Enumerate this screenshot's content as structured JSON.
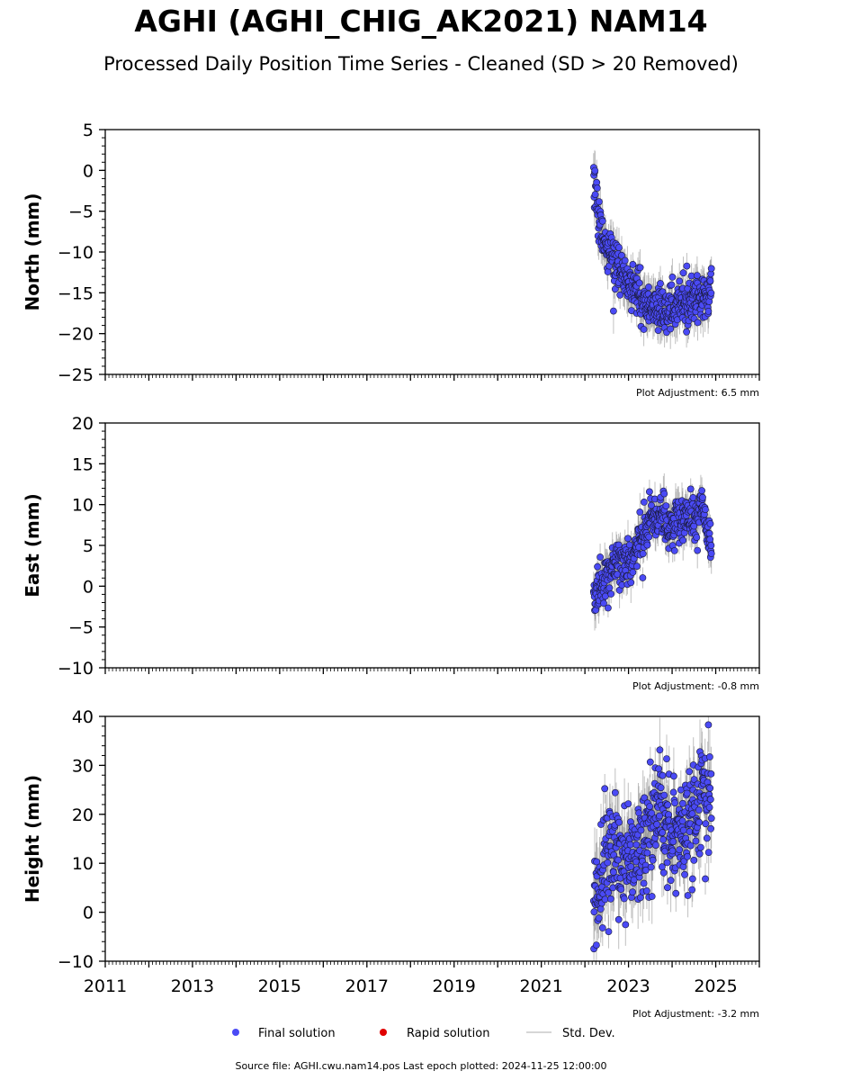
{
  "title": "AGHI (AGHI_CHIG_AK2021) NAM14",
  "subtitle": "Processed Daily Position Time Series - Cleaned (SD > 20 Removed)",
  "footer": "Source file: AGHI.cwu.nam14.pos  Last epoch plotted: 2024-11-25 12:00:00",
  "legend": [
    {
      "label": "Final solution",
      "color": "#4a4af5",
      "icon": "circle-marker"
    },
    {
      "label": "Rapid solution",
      "color": "#e00000",
      "icon": "circle-marker"
    },
    {
      "label": "Std. Dev.",
      "color": "#c8c8c8",
      "icon": "line-marker"
    }
  ],
  "colors": {
    "final": "#4a4af5",
    "rapid": "#e00000",
    "stddev": "#8c8c8c"
  },
  "chart_data": [
    {
      "type": "scatter",
      "ylabel": "North (mm)",
      "ylim": [
        -25,
        5
      ],
      "yticks": [
        5,
        0,
        -5,
        -10,
        -15,
        -20,
        -25
      ],
      "xlim": [
        2011,
        2026
      ],
      "adjustment": "Plot Adjustment: 6.5 mm",
      "series": [
        {
          "name": "Final solution",
          "x": [
            2022.2,
            2022.25,
            2022.3,
            2022.35,
            2022.4,
            2022.5,
            2022.6,
            2022.7,
            2022.8,
            2022.9,
            2023.0,
            2023.1,
            2023.2,
            2023.3,
            2023.4,
            2023.5,
            2023.6,
            2023.7,
            2023.8,
            2023.9,
            2024.0,
            2024.1,
            2024.2,
            2024.3,
            2024.4,
            2024.5,
            2024.6,
            2024.7,
            2024.8,
            2024.9
          ],
          "y": [
            0.0,
            -3.0,
            -5.5,
            -7.0,
            -8.0,
            -9.5,
            -10.5,
            -11.5,
            -12.5,
            -13.0,
            -14.0,
            -14.5,
            -15.0,
            -15.5,
            -16.0,
            -16.5,
            -17.0,
            -17.0,
            -17.5,
            -17.0,
            -16.5,
            -16.5,
            -16.0,
            -16.0,
            -16.0,
            -16.0,
            -16.0,
            -15.5,
            -15.5,
            -14.0
          ],
          "sd_mm": 2.0
        }
      ]
    },
    {
      "type": "scatter",
      "ylabel": "East (mm)",
      "ylim": [
        -10,
        20
      ],
      "yticks": [
        20,
        15,
        10,
        5,
        0,
        -5,
        -10
      ],
      "xlim": [
        2011,
        2026
      ],
      "adjustment": "Plot Adjustment: -0.8 mm",
      "series": [
        {
          "name": "Final solution",
          "x": [
            2022.2,
            2022.25,
            2022.3,
            2022.4,
            2022.5,
            2022.6,
            2022.7,
            2022.8,
            2022.9,
            2023.0,
            2023.1,
            2023.2,
            2023.3,
            2023.4,
            2023.5,
            2023.6,
            2023.7,
            2023.8,
            2023.9,
            2024.0,
            2024.1,
            2024.2,
            2024.3,
            2024.4,
            2024.5,
            2024.6,
            2024.7,
            2024.8,
            2024.9
          ],
          "y": [
            -1.5,
            -1.0,
            0.0,
            0.5,
            1.5,
            2.0,
            2.5,
            3.0,
            3.0,
            3.0,
            3.5,
            5.0,
            6.5,
            7.0,
            7.5,
            8.0,
            8.0,
            8.0,
            7.5,
            7.5,
            8.0,
            8.0,
            8.0,
            8.5,
            8.5,
            9.0,
            9.5,
            7.0,
            5.5
          ],
          "sd_mm": 1.8
        }
      ]
    },
    {
      "type": "scatter",
      "ylabel": "Height (mm)",
      "ylim": [
        -10,
        40
      ],
      "yticks": [
        40,
        30,
        20,
        10,
        0,
        -10
      ],
      "xlim": [
        2011,
        2026
      ],
      "xticks": [
        2011,
        2013,
        2015,
        2017,
        2019,
        2021,
        2023,
        2025
      ],
      "adjustment": "Plot Adjustment: -3.2 mm",
      "series": [
        {
          "name": "Final solution",
          "x": [
            2022.2,
            2022.3,
            2022.4,
            2022.5,
            2022.6,
            2022.7,
            2022.8,
            2022.9,
            2023.0,
            2023.1,
            2023.2,
            2023.3,
            2023.4,
            2023.5,
            2023.6,
            2023.7,
            2023.8,
            2023.9,
            2024.0,
            2024.1,
            2024.2,
            2024.3,
            2024.4,
            2024.5,
            2024.6,
            2024.7,
            2024.8,
            2024.9
          ],
          "y": [
            1.0,
            5.0,
            8.0,
            12.0,
            13.0,
            14.0,
            12.0,
            10.0,
            10.0,
            12.0,
            14.0,
            13.0,
            15.0,
            17.0,
            20.0,
            22.0,
            20.0,
            17.0,
            16.0,
            17.0,
            17.0,
            16.0,
            18.0,
            20.0,
            22.0,
            25.0,
            24.0,
            22.0
          ],
          "sd_mm": 5.0
        }
      ]
    }
  ]
}
